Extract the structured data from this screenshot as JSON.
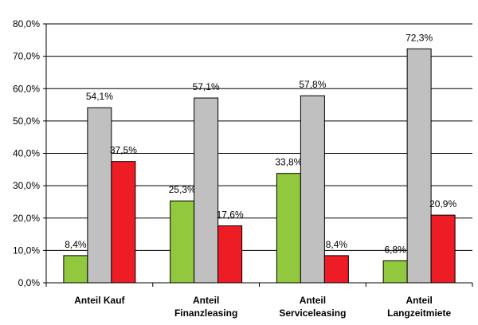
{
  "chart_data": {
    "type": "bar",
    "categories": [
      [
        "Anteil Kauf"
      ],
      [
        "Anteil",
        "Finanzleasing"
      ],
      [
        "Anteil",
        "Serviceleasing"
      ],
      [
        "Anteil",
        "Langzeitmiete"
      ]
    ],
    "series": [
      {
        "values": [
          8.4,
          25.3,
          33.8,
          6.8
        ],
        "labels": [
          "8,4%",
          "25,3%",
          "33,8%",
          "6,8%"
        ],
        "color": "#92c83e"
      },
      {
        "values": [
          54.1,
          57.1,
          57.8,
          72.3
        ],
        "labels": [
          "54,1%",
          "57,1%",
          "57,8%",
          "72,3%"
        ],
        "color": "#c0c0c0"
      },
      {
        "values": [
          37.5,
          17.6,
          8.4,
          20.9
        ],
        "labels": [
          "37,5%",
          "17,6%",
          "8,4%",
          "20,9%"
        ],
        "color": "#ee1c24"
      }
    ],
    "ylim": [
      0,
      80
    ],
    "yticks": [
      0,
      10,
      20,
      30,
      40,
      50,
      60,
      70,
      80
    ],
    "ytick_labels": [
      "0,0%",
      "10,0%",
      "20,0%",
      "30,0%",
      "40,0%",
      "50,0%",
      "60,0%",
      "70,0%",
      "80,0%"
    ],
    "grid": true,
    "legend": "none"
  }
}
